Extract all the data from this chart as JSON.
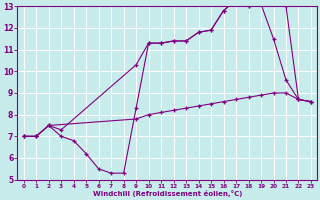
{
  "title": "",
  "xlabel": "Windchill (Refroidissement éolien,°C)",
  "bg_color": "#c8ecec",
  "line_color": "#800080",
  "grid_color": "#ffffff",
  "xlim": [
    -0.5,
    23.5
  ],
  "ylim": [
    5,
    13
  ],
  "xticks": [
    0,
    1,
    2,
    3,
    4,
    5,
    6,
    7,
    8,
    9,
    10,
    11,
    12,
    13,
    14,
    15,
    16,
    17,
    18,
    19,
    20,
    21,
    22,
    23
  ],
  "yticks": [
    5,
    6,
    7,
    8,
    9,
    10,
    11,
    12,
    13
  ],
  "series": [
    {
      "x": [
        0,
        1,
        2,
        9,
        10,
        11,
        12,
        13,
        14,
        15,
        16,
        17,
        18,
        19,
        20,
        21,
        22,
        23
      ],
      "y": [
        7.0,
        7.0,
        7.5,
        7.8,
        8.0,
        8.1,
        8.2,
        8.3,
        8.4,
        8.5,
        8.6,
        8.7,
        8.8,
        8.9,
        9.0,
        9.0,
        8.7,
        8.6
      ]
    },
    {
      "x": [
        0,
        1,
        2,
        3,
        4,
        5,
        6,
        7,
        8,
        9,
        10,
        11,
        12,
        13,
        14,
        15,
        16,
        17,
        18,
        19,
        20,
        21,
        22,
        23
      ],
      "y": [
        7.0,
        7.0,
        7.5,
        7.0,
        6.8,
        6.2,
        5.5,
        5.3,
        5.3,
        8.3,
        11.3,
        11.3,
        11.4,
        11.4,
        11.8,
        11.9,
        12.8,
        13.3,
        13.0,
        13.1,
        11.5,
        9.6,
        8.7,
        8.6
      ]
    },
    {
      "x": [
        0,
        1,
        2,
        3,
        9,
        10,
        11,
        12,
        13,
        14,
        15,
        16,
        17,
        18,
        19,
        20,
        21,
        22,
        23
      ],
      "y": [
        7.0,
        7.0,
        7.5,
        7.3,
        10.3,
        11.3,
        11.3,
        11.4,
        11.4,
        11.8,
        11.9,
        12.8,
        13.3,
        13.0,
        13.1,
        13.1,
        13.0,
        8.7,
        8.6
      ]
    }
  ]
}
